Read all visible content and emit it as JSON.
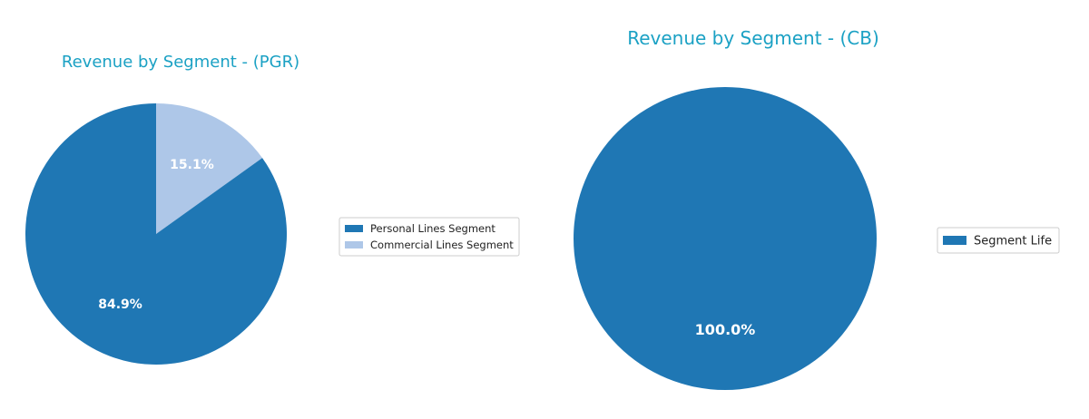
{
  "chart_data": [
    {
      "type": "pie",
      "title": "Revenue by Segment - (PGR)",
      "legend_position": "right",
      "start_angle_deg": 90,
      "direction": "clockwise",
      "slices": [
        {
          "label": "Commercial Lines Segment",
          "value": 15.1,
          "display": "15.1%",
          "color": "#aec7e8"
        },
        {
          "label": "Personal Lines Segment",
          "value": 84.9,
          "display": "84.9%",
          "color": "#1f77b4"
        }
      ],
      "legend": [
        "Personal Lines Segment",
        "Commercial Lines Segment"
      ]
    },
    {
      "type": "pie",
      "title": "Revenue by Segment - (CB)",
      "legend_position": "right",
      "start_angle_deg": 90,
      "direction": "clockwise",
      "slices": [
        {
          "label": "Segment Life",
          "value": 100.0,
          "display": "100.0%",
          "color": "#1f77b4"
        }
      ],
      "legend": [
        "Segment Life"
      ]
    }
  ]
}
